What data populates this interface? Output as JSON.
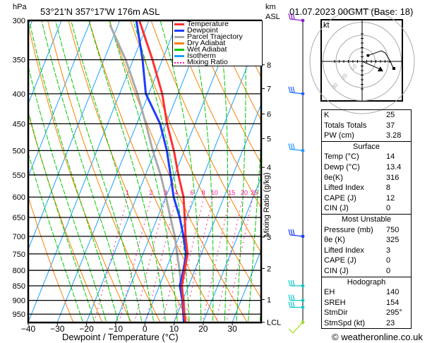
{
  "header": {
    "hpa_label": "hPa",
    "location": "53°21'N  357°17'W  176m  ASL",
    "km_label": "km",
    "asl_label": "ASL",
    "datetime": "01.07.2023  00GMT  (Base: 18)"
  },
  "legend": [
    {
      "label": "Temperature",
      "color": "#ff3030"
    },
    {
      "label": "Dewpoint",
      "color": "#1e3cff"
    },
    {
      "label": "Parcel Trajectory",
      "color": "#aaaaaa"
    },
    {
      "label": "Dry Adiabat",
      "color": "#ff8000"
    },
    {
      "label": "Wet Adiabat",
      "color": "#00c800"
    },
    {
      "label": "Isotherm",
      "color": "#1aa0ff"
    },
    {
      "label": "Mixing Ratio",
      "color": "#ff1493"
    }
  ],
  "chart_data": {
    "type": "line",
    "title": "Skew-T log-P diagram",
    "xlabel": "Dewpoint / Temperature (°C)",
    "ylabel": "hPa",
    "y2label": "Mixing Ratio (g/kg)",
    "xlim": [
      -40,
      40
    ],
    "ylim_hpa": [
      300,
      981
    ],
    "x_ticks": [
      -40,
      -30,
      -20,
      -10,
      0,
      10,
      20,
      30
    ],
    "pressure_levels": [
      300,
      350,
      400,
      450,
      500,
      550,
      600,
      650,
      700,
      750,
      800,
      850,
      900,
      950
    ],
    "km_ticks": [
      {
        "label": "8",
        "p": 357
      },
      {
        "label": "7",
        "p": 392
      },
      {
        "label": "6",
        "p": 433
      },
      {
        "label": "5",
        "p": 477
      },
      {
        "label": "4",
        "p": 534
      },
      {
        "label": "3",
        "p": 702
      },
      {
        "label": "2",
        "p": 794
      },
      {
        "label": "1",
        "p": 897
      },
      {
        "label": "LCL",
        "p": 981
      }
    ],
    "mixing_ratio_labels": [
      "1",
      "2",
      "3",
      "4",
      "6",
      "8",
      "10",
      "15",
      "20",
      "25"
    ],
    "mixing_ratios": [
      1,
      2,
      3,
      4,
      6,
      8,
      10,
      15,
      20,
      25
    ],
    "series": [
      {
        "name": "Temperature",
        "p": [
          300,
          350,
          400,
          450,
          500,
          550,
          600,
          650,
          700,
          750,
          800,
          850,
          900,
          950,
          981
        ],
        "t": [
          -43.3,
          -33.4,
          -25.4,
          -19.6,
          -13.6,
          -8.7,
          -3.9,
          -0.7,
          2.2,
          5.3,
          6.5,
          7.7,
          10.2,
          12.3,
          14.0
        ]
      },
      {
        "name": "Dewpoint",
        "p": [
          300,
          350,
          400,
          450,
          500,
          550,
          600,
          650,
          700,
          750,
          800,
          850,
          900,
          950,
          981
        ],
        "t": [
          -44.3,
          -36.8,
          -31.0,
          -22.0,
          -16.0,
          -11.4,
          -7.3,
          -2.4,
          1.5,
          4.8,
          6.1,
          7.0,
          9.9,
          12.1,
          13.4
        ]
      },
      {
        "name": "Parcel Trajectory",
        "p": [
          305,
          350,
          400,
          450,
          500,
          550,
          600,
          650,
          700,
          750,
          800,
          850,
          900,
          950,
          981
        ],
        "t": [
          -52.8,
          -42.6,
          -33.9,
          -26.9,
          -20.8,
          -14.8,
          -9.9,
          -5.6,
          -1.5,
          1.7,
          4.8,
          7.5,
          10.4,
          12.6,
          14.0
        ]
      }
    ],
    "wind_barbs": [
      {
        "p": 300,
        "color": "#8a1ecc"
      },
      {
        "p": 400,
        "color": "#1e64ff"
      },
      {
        "p": 500,
        "color": "#1e96ff"
      },
      {
        "p": 700,
        "color": "#1e3cff"
      },
      {
        "p": 850,
        "color": "#14c8c8"
      },
      {
        "p": 900,
        "color": "#14c8c8"
      },
      {
        "p": 925,
        "color": "#14c8c8"
      },
      {
        "p": 981,
        "color": "#a0dc28"
      }
    ]
  },
  "hodograph": {
    "unit_label": "kt",
    "ring_labels": [
      "10",
      "20",
      "30"
    ],
    "trace_kt": [
      [
        4.5,
        4.5
      ],
      [
        14.6,
        8.1
      ],
      [
        17.8,
        6.5
      ],
      [
        21.6,
        0
      ],
      [
        22.7,
        -2.7
      ],
      [
        24.3,
        -5.4
      ]
    ],
    "storm_motion_kt": [
      14,
      -6
    ]
  },
  "indices": {
    "general": [
      {
        "label": "K",
        "value": "25"
      },
      {
        "label": "Totals Totals",
        "value": "37"
      },
      {
        "label": "PW (cm)",
        "value": "3.28"
      }
    ],
    "surface": {
      "title": "Surface",
      "rows": [
        {
          "label": "Temp (°C)",
          "value": "14"
        },
        {
          "label": "Dewp (°C)",
          "value": "13.4"
        },
        {
          "label": "θe(K)",
          "value": "316"
        },
        {
          "label": "Lifted Index",
          "value": "8"
        },
        {
          "label": "CAPE (J)",
          "value": "12"
        },
        {
          "label": "CIN (J)",
          "value": "0"
        }
      ]
    },
    "most_unstable": {
      "title": "Most Unstable",
      "rows": [
        {
          "label": "Pressure (mb)",
          "value": "750"
        },
        {
          "label": "θe (K)",
          "value": "325"
        },
        {
          "label": "Lifted Index",
          "value": "3"
        },
        {
          "label": "CAPE (J)",
          "value": "0"
        },
        {
          "label": "CIN (J)",
          "value": "0"
        }
      ]
    },
    "hodograph": {
      "title": "Hodograph",
      "rows": [
        {
          "label": "EH",
          "value": "140"
        },
        {
          "label": "SREH",
          "value": "154"
        },
        {
          "label": "StmDir",
          "value": "295°"
        },
        {
          "label": "StmSpd (kt)",
          "value": "23"
        }
      ]
    }
  },
  "footer": "© weatheronline.co.uk"
}
